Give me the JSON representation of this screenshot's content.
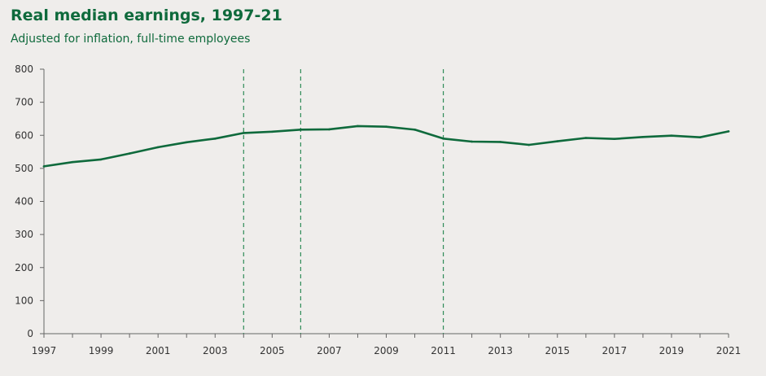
{
  "header": {
    "title": "Real median earnings, 1997-21",
    "subtitle": "Adjusted for inflation, full-time employees"
  },
  "colors": {
    "line": "#0f6a3c",
    "dashed": "#2e8b57",
    "axis": "#666666",
    "text": "#333333"
  },
  "chart_data": {
    "type": "line",
    "title": "Real median earnings, 1997-21",
    "subtitle": "Adjusted for inflation, full-time employees",
    "xlabel": "",
    "ylabel": "",
    "xlim": [
      1997,
      2021
    ],
    "ylim": [
      0,
      800
    ],
    "y_ticks": [
      0,
      100,
      200,
      300,
      400,
      500,
      600,
      700,
      800
    ],
    "x_ticks": [
      1997,
      1999,
      2001,
      2003,
      2005,
      2007,
      2009,
      2011,
      2013,
      2015,
      2017,
      2019,
      2021
    ],
    "grid": false,
    "vertical_dashed_lines": [
      2004,
      2006,
      2011
    ],
    "x": [
      1997,
      1998,
      1999,
      2000,
      2001,
      2002,
      2003,
      2004,
      2005,
      2006,
      2007,
      2008,
      2009,
      2010,
      2011,
      2012,
      2013,
      2014,
      2015,
      2016,
      2017,
      2018,
      2019,
      2020,
      2021
    ],
    "y": [
      506,
      519,
      527,
      545,
      564,
      579,
      590,
      607,
      611,
      617,
      618,
      628,
      626,
      617,
      590,
      581,
      580,
      571,
      582,
      592,
      589,
      595,
      599,
      594,
      612
    ]
  }
}
